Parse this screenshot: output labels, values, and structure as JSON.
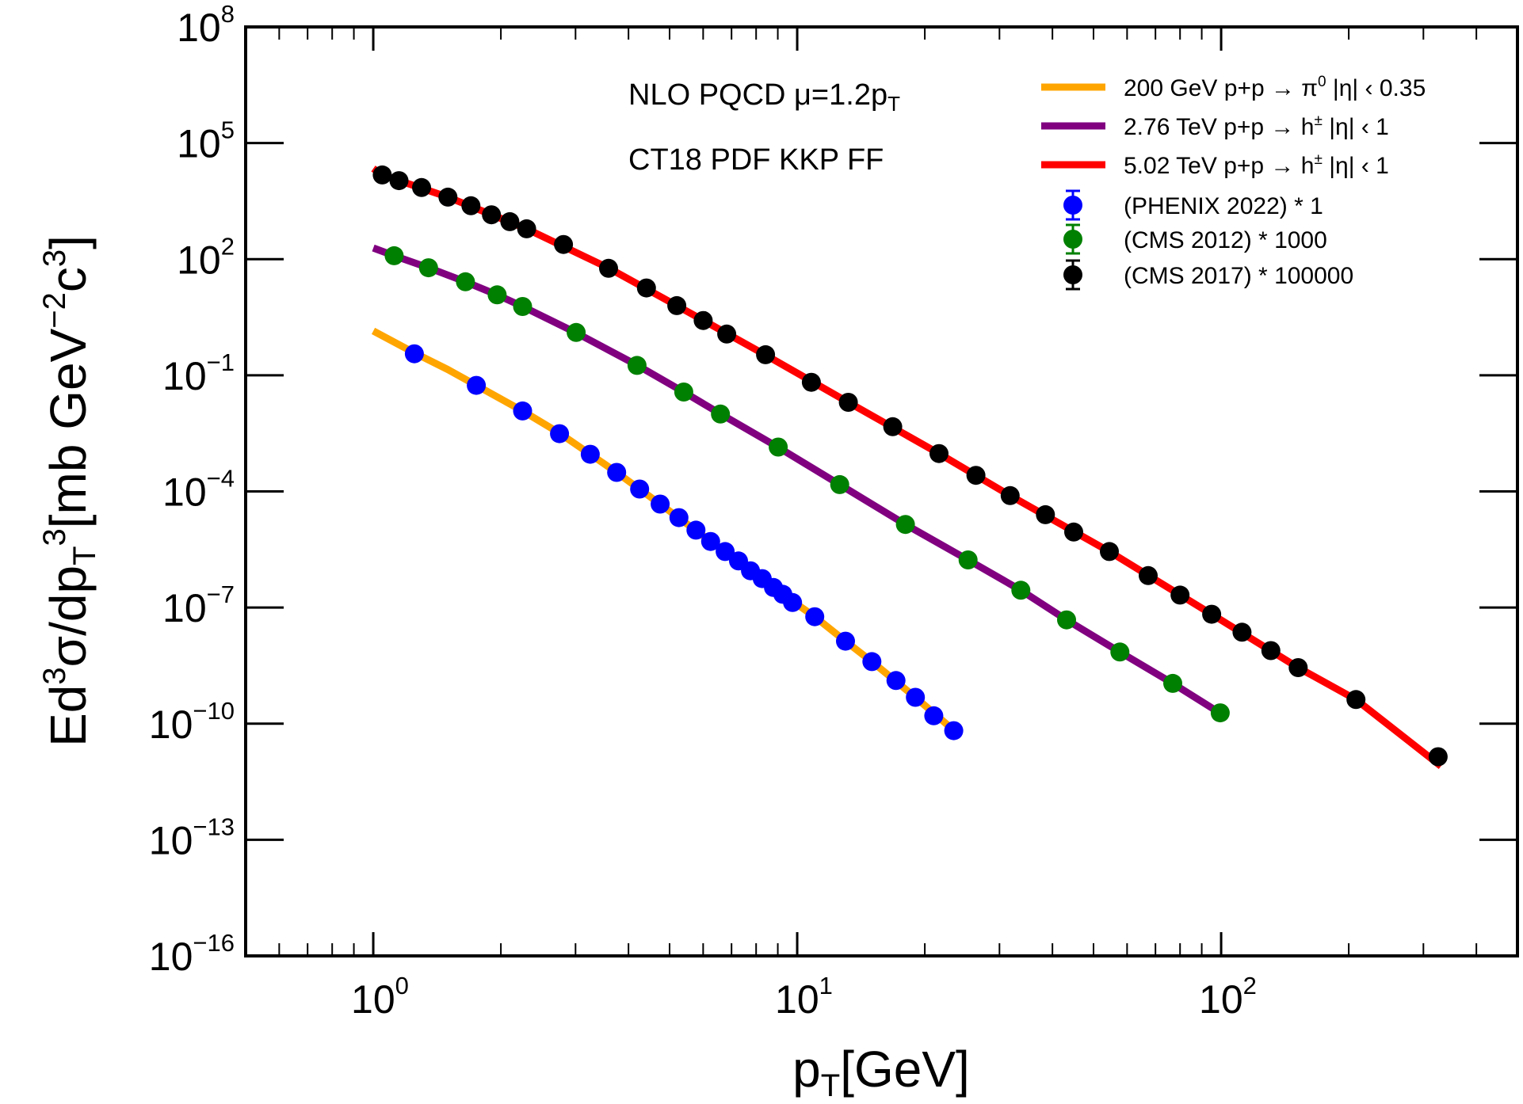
{
  "chart_data": {
    "type": "scatter",
    "title": "",
    "xlabel": {
      "main": "p",
      "sub": "T",
      "rest": "[GeV]"
    },
    "ylabel": {
      "parts": [
        {
          "t": "Ed",
          "k": "n"
        },
        {
          "t": "3",
          "k": "sup"
        },
        {
          "t": "σ/dp",
          "k": "n"
        },
        {
          "t": "T",
          "k": "sub"
        },
        {
          "t": "3",
          "k": "sup"
        },
        {
          "t": "[mb GeV",
          "k": "n"
        },
        {
          "t": "−2",
          "k": "sup"
        },
        {
          "t": "c",
          "k": "n"
        },
        {
          "t": "3",
          "k": "sup"
        },
        {
          "t": "]",
          "k": "n"
        }
      ]
    },
    "xscale": "log",
    "yscale": "log",
    "xlim": [
      0.5,
      500
    ],
    "ylim": [
      1e-16,
      100000000.0
    ],
    "x_ticks": [
      {
        "value": 1,
        "base": "10",
        "exp": "0"
      },
      {
        "value": 10,
        "base": "10",
        "exp": "1"
      },
      {
        "value": 100,
        "base": "10",
        "exp": "2"
      }
    ],
    "y_ticks": [
      {
        "value": 100000000.0,
        "base": "10",
        "exp": "8"
      },
      {
        "value": 100000.0,
        "base": "10",
        "exp": "5"
      },
      {
        "value": 100.0,
        "base": "10",
        "exp": "2"
      },
      {
        "value": 0.1,
        "base": "10",
        "exp": "−1"
      },
      {
        "value": 0.0001,
        "base": "10",
        "exp": "−4"
      },
      {
        "value": 1e-07,
        "base": "10",
        "exp": "−7"
      },
      {
        "value": 1e-10,
        "base": "10",
        "exp": "−10"
      },
      {
        "value": 1e-13,
        "base": "10",
        "exp": "−13"
      },
      {
        "value": 1e-16,
        "base": "10",
        "exp": "−16"
      }
    ],
    "grid": false,
    "annotations": [
      {
        "parts": [
          {
            "t": "NLO PQCD  μ=1.2p",
            "k": "n"
          },
          {
            "t": "T",
            "k": "sub"
          }
        ]
      },
      {
        "parts": [
          {
            "t": "CT18 PDF   KKP FF",
            "k": "n"
          }
        ]
      }
    ],
    "legend_position": "top-right",
    "curves": [
      {
        "name": "200 GeV p+p → π0 |η| < 0.35",
        "legend_parts": [
          {
            "t": "200 GeV p+p → π",
            "k": "n"
          },
          {
            "t": "0",
            "k": "sup"
          },
          {
            "t": " |η| ‹ 0.35",
            "k": "n"
          }
        ],
        "color": "#FFA500",
        "x": [
          1.0,
          1.25,
          1.5,
          1.75,
          2.25,
          2.75,
          3.25,
          3.75,
          4.75,
          5.75,
          7.25,
          9.25,
          11.0,
          13.0,
          15.0,
          19.0,
          23.5
        ],
        "y": [
          1.4,
          0.38,
          0.14,
          0.055,
          0.012,
          0.0032,
          0.00091,
          0.00031,
          4.7e-05,
          1e-05,
          1.6e-06,
          2.2e-07,
          5.8e-08,
          1.35e-08,
          4e-09,
          4.8e-10,
          6.5e-11
        ]
      },
      {
        "name": "2.76 TeV p+p → h± |η| < 1",
        "legend_parts": [
          {
            "t": "2.76 TeV p+p → h",
            "k": "n"
          },
          {
            "t": "±",
            "k": "sup"
          },
          {
            "t": " |η| ‹ 1",
            "k": "n"
          }
        ],
        "color": "#800080",
        "x": [
          1.0,
          1.12,
          1.35,
          1.65,
          1.96,
          2.25,
          3.0,
          4.2,
          5.4,
          6.6,
          9.0,
          12.6,
          18.0,
          25.3,
          33.7,
          43.2,
          57.7,
          76.9,
          100
        ],
        "y": [
          195,
          123,
          60,
          26,
          12,
          6.0,
          1.28,
          0.18,
          0.037,
          0.01,
          0.0014,
          0.00015,
          1.4e-05,
          1.7e-06,
          2.8e-07,
          4.8e-08,
          7.1e-09,
          1.1e-09,
          1.8e-10
        ]
      },
      {
        "name": "5.02 TeV p+p → h± |η| < 1",
        "legend_parts": [
          {
            "t": "5.02 TeV p+p → h",
            "k": "n"
          },
          {
            "t": "±",
            "k": "sup"
          },
          {
            "t": " |η| ‹ 1",
            "k": "n"
          }
        ],
        "color": "#FF0000",
        "x": [
          1.0,
          1.05,
          1.5,
          2.3,
          3.6,
          5.2,
          8.4,
          13.2,
          21.6,
          31.8,
          54.5,
          95,
          152,
          208,
          330
        ],
        "y": [
          22000,
          15000,
          4000,
          610,
          58,
          6.3,
          0.34,
          0.02,
          0.00095,
          7.8e-05,
          2.8e-06,
          6.7e-08,
          2.8e-09,
          4.2e-10,
          8e-12
        ]
      }
    ],
    "series": [
      {
        "name": "(PHENIX 2022) * 1",
        "color": "#0000FF",
        "x": [
          1.25,
          1.75,
          2.25,
          2.75,
          3.25,
          3.75,
          4.25,
          4.75,
          5.26,
          5.77,
          6.25,
          6.76,
          7.27,
          7.76,
          8.27,
          8.79,
          9.25,
          9.75,
          11.0,
          13.0,
          15.0,
          17.1,
          19.0,
          21.0,
          23.4
        ],
        "y": [
          0.36,
          0.055,
          0.012,
          0.0031,
          0.00091,
          0.00031,
          0.000115,
          4.7e-05,
          2.1e-05,
          1e-05,
          5.1e-06,
          2.8e-06,
          1.6e-06,
          8.9e-07,
          5.6e-07,
          3.3e-07,
          2.2e-07,
          1.35e-07,
          5.8e-08,
          1.35e-08,
          4e-09,
          1.3e-09,
          4.8e-10,
          1.6e-10,
          6.6e-11
        ]
      },
      {
        "name": "(CMS 2012) * 1000",
        "color": "#008000",
        "x": [
          1.12,
          1.35,
          1.65,
          1.96,
          2.25,
          3.01,
          4.19,
          5.4,
          6.59,
          9.02,
          12.6,
          18.0,
          25.3,
          33.7,
          43.2,
          57.7,
          76.9,
          99.5
        ],
        "y": [
          123,
          60,
          26,
          12,
          6.0,
          1.28,
          0.18,
          0.037,
          0.01,
          0.0014,
          0.00015,
          1.4e-05,
          1.7e-06,
          2.8e-07,
          4.8e-08,
          7.1e-09,
          1.1e-09,
          1.9e-10
        ]
      },
      {
        "name": "(CMS 2017) * 100000",
        "color": "#000000",
        "x": [
          1.05,
          1.15,
          1.3,
          1.5,
          1.7,
          1.9,
          2.1,
          2.3,
          2.81,
          3.59,
          4.41,
          5.2,
          6.0,
          6.82,
          8.42,
          10.8,
          13.2,
          16.8,
          21.6,
          26.4,
          31.8,
          38.5,
          44.9,
          54.5,
          67.3,
          80.0,
          95.0,
          112,
          131,
          152,
          208,
          325
        ],
        "y": [
          15000,
          10700,
          7100,
          4000,
          2400,
          1400,
          930,
          610,
          240,
          58,
          18,
          6.3,
          2.6,
          1.16,
          0.34,
          0.066,
          0.02,
          0.0047,
          0.00095,
          0.00026,
          7.8e-05,
          2.5e-05,
          8.9e-06,
          2.8e-06,
          6.7e-07,
          2.1e-07,
          6.7e-08,
          2.3e-08,
          7.7e-09,
          2.8e-09,
          4.2e-10,
          1.4e-11
        ]
      }
    ]
  }
}
